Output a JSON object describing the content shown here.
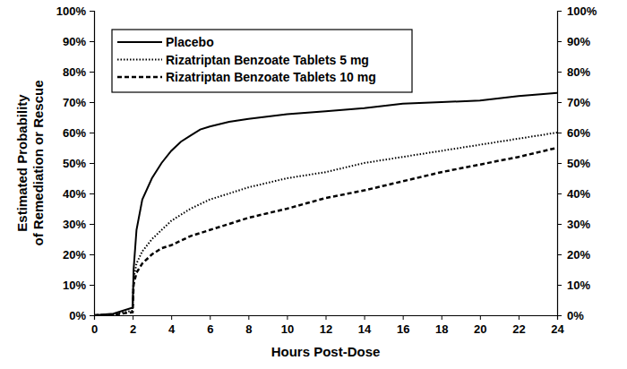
{
  "chart_data": {
    "type": "line",
    "x_label": "Hours Post-Dose",
    "y_label": [
      "Estimated Probability",
      "of Remediation or Rescue"
    ],
    "x": [
      0,
      1,
      2,
      2.05,
      2.2,
      2.5,
      3,
      3.5,
      4,
      4.5,
      5,
      5.5,
      6,
      7,
      8,
      10,
      12,
      14,
      16,
      18,
      20,
      22,
      24
    ],
    "series": [
      {
        "name": "Placebo",
        "color": "#000000",
        "line_style": "solid",
        "values": [
          0,
          0.5,
          2.5,
          15,
          28,
          38,
          45,
          50,
          54,
          57,
          59,
          61,
          62,
          63.5,
          64.5,
          66,
          67,
          68,
          69.5,
          70,
          70.5,
          72,
          73
        ]
      },
      {
        "name": "Rizatriptan Benzoate Tablets 5 mg",
        "color": "#000000",
        "line_style": "dotted",
        "values": [
          0,
          0.3,
          1.5,
          12,
          17,
          21,
          25,
          28,
          31,
          33,
          35,
          36.5,
          38,
          40,
          42,
          45,
          47,
          50,
          52,
          54,
          56,
          58,
          60
        ]
      },
      {
        "name": "Rizatriptan Benzoate Tablets 10 mg",
        "color": "#000000",
        "line_style": "dashed",
        "values": [
          0,
          0.2,
          1,
          10,
          14,
          17,
          20,
          22,
          23,
          24.5,
          26,
          27,
          28,
          30,
          32,
          35,
          38.5,
          41,
          44,
          47,
          49.5,
          52,
          55
        ]
      }
    ],
    "xlim": [
      0,
      24
    ],
    "xticks": [
      0,
      2,
      4,
      6,
      8,
      10,
      12,
      14,
      16,
      18,
      20,
      22,
      24
    ],
    "ylim": [
      0,
      100
    ],
    "yticks": [
      {
        "value": 0,
        "label": "0%"
      },
      {
        "value": 10,
        "label": "10%"
      },
      {
        "value": 20,
        "label": "20%"
      },
      {
        "value": 30,
        "label": "30%"
      },
      {
        "value": 40,
        "label": "40%"
      },
      {
        "value": 50,
        "label": "50%"
      },
      {
        "value": 60,
        "label": "60%"
      },
      {
        "value": 70,
        "label": "70%"
      },
      {
        "value": 80,
        "label": "80%"
      },
      {
        "value": 90,
        "label": "90%"
      },
      {
        "value": 100,
        "label": "100%"
      }
    ],
    "grid": false,
    "legend": "upper left"
  }
}
